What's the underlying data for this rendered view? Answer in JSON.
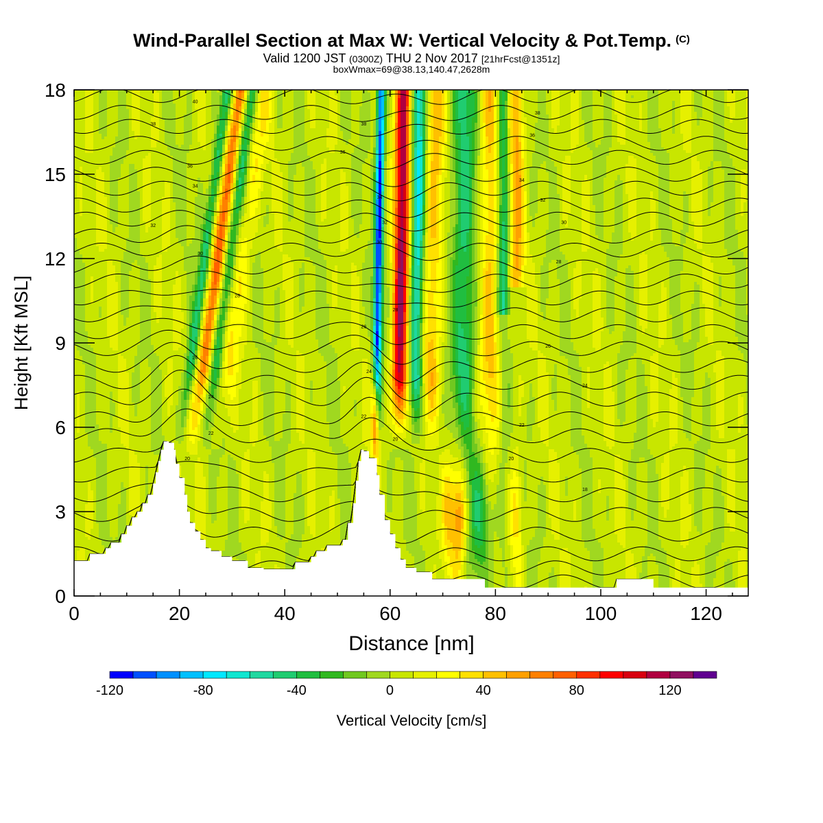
{
  "chart_data": {
    "type": "heatmap",
    "title": "Wind-Parallel Section at Max W: Vertical Velocity & Pot.Temp.",
    "title_mark": "(C)",
    "subtitle_main": "Valid 1200 JST",
    "subtitle_utc": "(0300Z)",
    "subtitle_date": "THU 2 Nov 2017",
    "subtitle_fcst": "[21hrFcst@1351z]",
    "subtitle2": "boxWmax=69@38.13,140.47,2628m",
    "xlabel": "Distance [nm]",
    "ylabel": "Height [Kft MSL]",
    "xlim": [
      0,
      128
    ],
    "ylim": [
      0,
      18
    ],
    "x_ticks": [
      0,
      20,
      40,
      60,
      80,
      100,
      120
    ],
    "y_ticks": [
      0,
      3,
      6,
      9,
      12,
      15,
      18
    ],
    "colorbar": {
      "label": "Vertical Velocity [cm/s]",
      "range": [
        -120,
        140
      ],
      "step": 10,
      "tick_labels": [
        -120,
        -80,
        -40,
        0,
        40,
        80,
        120
      ],
      "colors": [
        "#0000ff",
        "#0050ff",
        "#0090ff",
        "#00c0ff",
        "#00e8ff",
        "#10e6d0",
        "#20d8a0",
        "#20cc70",
        "#20be40",
        "#30b820",
        "#70c820",
        "#a0d820",
        "#c8e600",
        "#e6f000",
        "#ffff00",
        "#ffe000",
        "#ffc000",
        "#ffa000",
        "#ff8000",
        "#ff6000",
        "#ff3000",
        "#ff0000",
        "#d80010",
        "#b00040",
        "#901060",
        "#600090"
      ]
    },
    "theta_labels": [
      {
        "x": 23,
        "y": 17.6,
        "text": "40"
      },
      {
        "x": 15,
        "y": 16.8,
        "text": "38"
      },
      {
        "x": 22,
        "y": 15.3,
        "text": "36"
      },
      {
        "x": 23,
        "y": 14.6,
        "text": "34"
      },
      {
        "x": 15,
        "y": 13.2,
        "text": "32"
      },
      {
        "x": 24,
        "y": 12.2,
        "text": "30"
      },
      {
        "x": 31,
        "y": 10.7,
        "text": "28"
      },
      {
        "x": 23,
        "y": 8.5,
        "text": "26"
      },
      {
        "x": 26,
        "y": 7.1,
        "text": "24"
      },
      {
        "x": 26,
        "y": 5.8,
        "text": "22"
      },
      {
        "x": 21.5,
        "y": 4.9,
        "text": "20"
      },
      {
        "x": 55,
        "y": 16.8,
        "text": "38"
      },
      {
        "x": 51,
        "y": 15.8,
        "text": "36"
      },
      {
        "x": 58,
        "y": 14.2,
        "text": "34"
      },
      {
        "x": 59,
        "y": 13.3,
        "text": "32"
      },
      {
        "x": 58,
        "y": 12.6,
        "text": "30"
      },
      {
        "x": 61,
        "y": 10.2,
        "text": "28"
      },
      {
        "x": 55,
        "y": 9.6,
        "text": "26"
      },
      {
        "x": 56,
        "y": 8.0,
        "text": "24"
      },
      {
        "x": 55,
        "y": 6.4,
        "text": "22"
      },
      {
        "x": 61,
        "y": 5.6,
        "text": "20"
      },
      {
        "x": 88,
        "y": 17.2,
        "text": "38"
      },
      {
        "x": 87,
        "y": 16.4,
        "text": "36"
      },
      {
        "x": 85,
        "y": 14.8,
        "text": "34"
      },
      {
        "x": 89,
        "y": 14.1,
        "text": "32"
      },
      {
        "x": 93,
        "y": 13.3,
        "text": "30"
      },
      {
        "x": 92,
        "y": 11.9,
        "text": "28"
      },
      {
        "x": 90,
        "y": 8.9,
        "text": "26"
      },
      {
        "x": 97,
        "y": 7.5,
        "text": "24"
      },
      {
        "x": 85,
        "y": 6.1,
        "text": "22"
      },
      {
        "x": 83,
        "y": 4.9,
        "text": "20"
      },
      {
        "x": 97,
        "y": 3.8,
        "text": "18"
      }
    ],
    "theta_contour_bases": [
      0.5,
      1.0,
      1.5,
      2.2,
      2.9,
      3.6,
      4.3,
      5.0,
      5.7,
      6.3,
      7.0,
      7.6,
      8.2,
      8.8,
      9.4,
      10.0,
      10.6,
      11.2,
      11.7,
      12.3,
      12.8,
      13.4,
      13.9,
      14.5,
      15.0,
      15.6,
      16.1,
      16.7,
      17.2,
      17.8
    ],
    "terrain": [
      [
        0,
        1.25
      ],
      [
        3,
        1.25
      ],
      [
        3,
        1.5
      ],
      [
        6,
        1.5
      ],
      [
        6,
        1.7
      ],
      [
        7,
        1.7
      ],
      [
        7,
        1.9
      ],
      [
        9,
        1.9
      ],
      [
        9,
        2.2
      ],
      [
        10,
        2.2
      ],
      [
        10,
        2.5
      ],
      [
        11,
        2.5
      ],
      [
        11,
        2.8
      ],
      [
        12,
        2.8
      ],
      [
        12,
        3.0
      ],
      [
        13,
        3.0
      ],
      [
        13,
        3.3
      ],
      [
        14,
        3.3
      ],
      [
        14,
        3.6
      ],
      [
        15,
        3.6
      ],
      [
        15,
        4.0
      ],
      [
        15.5,
        4.0
      ],
      [
        15.5,
        4.4
      ],
      [
        16,
        4.4
      ],
      [
        16,
        4.8
      ],
      [
        16.5,
        4.8
      ],
      [
        16.5,
        5.2
      ],
      [
        17,
        5.2
      ],
      [
        17,
        5.5
      ],
      [
        18,
        5.5
      ],
      [
        18,
        5.45
      ],
      [
        19,
        5.45
      ],
      [
        19,
        5.2
      ],
      [
        19.3,
        5.2
      ],
      [
        19.3,
        4.7
      ],
      [
        20,
        4.7
      ],
      [
        20,
        4.2
      ],
      [
        21,
        4.2
      ],
      [
        21,
        3.6
      ],
      [
        21.5,
        3.6
      ],
      [
        21.5,
        3.0
      ],
      [
        22,
        3.0
      ],
      [
        22,
        2.6
      ],
      [
        23,
        2.6
      ],
      [
        23,
        2.3
      ],
      [
        24,
        2.3
      ],
      [
        24,
        2.0
      ],
      [
        25,
        2.0
      ],
      [
        25,
        1.7
      ],
      [
        26,
        1.7
      ],
      [
        26,
        1.6
      ],
      [
        28,
        1.6
      ],
      [
        28,
        1.4
      ],
      [
        30,
        1.4
      ],
      [
        30,
        1.25
      ],
      [
        33,
        1.25
      ],
      [
        33,
        1.0
      ],
      [
        36,
        1.0
      ],
      [
        36,
        0.95
      ],
      [
        42,
        0.95
      ],
      [
        42,
        1.2
      ],
      [
        45,
        1.2
      ],
      [
        45,
        1.4
      ],
      [
        46,
        1.4
      ],
      [
        46,
        1.6
      ],
      [
        48,
        1.6
      ],
      [
        48,
        1.8
      ],
      [
        51,
        1.8
      ],
      [
        51,
        2.0
      ],
      [
        52,
        2.0
      ],
      [
        52,
        2.6
      ],
      [
        53,
        2.6
      ],
      [
        53,
        3.3
      ],
      [
        53.5,
        3.3
      ],
      [
        53.5,
        4.1
      ],
      [
        54,
        4.1
      ],
      [
        54,
        4.8
      ],
      [
        54.5,
        4.8
      ],
      [
        54.5,
        5.2
      ],
      [
        55,
        5.2
      ],
      [
        55,
        5.15
      ],
      [
        56,
        5.15
      ],
      [
        56,
        4.9
      ],
      [
        57.5,
        4.9
      ],
      [
        57.5,
        4.3
      ],
      [
        58,
        4.3
      ],
      [
        58,
        3.6
      ],
      [
        59,
        3.6
      ],
      [
        59,
        2.7
      ],
      [
        60,
        2.7
      ],
      [
        60,
        2.2
      ],
      [
        61,
        2.2
      ],
      [
        61,
        1.7
      ],
      [
        62,
        1.7
      ],
      [
        62,
        1.3
      ],
      [
        63,
        1.3
      ],
      [
        63,
        1.0
      ],
      [
        65,
        1.0
      ],
      [
        65,
        0.85
      ],
      [
        68,
        0.85
      ],
      [
        68,
        0.6
      ],
      [
        78,
        0.6
      ],
      [
        78,
        0.3
      ],
      [
        84,
        0.3
      ],
      [
        84,
        0.3
      ],
      [
        103,
        0.3
      ],
      [
        103,
        0.6
      ],
      [
        110,
        0.6
      ],
      [
        110,
        0.3
      ],
      [
        128,
        0.3
      ]
    ]
  }
}
